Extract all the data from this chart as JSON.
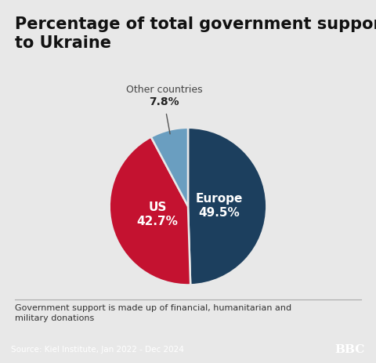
{
  "title": "Percentage of total government support\nto Ukraine",
  "slices": [
    49.5,
    42.7,
    7.8
  ],
  "labels": [
    "Europe",
    "US",
    "Other countries"
  ],
  "values_str": [
    "49.5%",
    "42.7%",
    "7.8%"
  ],
  "colors": [
    "#1c3f5e",
    "#c41230",
    "#6a9ec0"
  ],
  "background_color": "#e8e8e8",
  "footer_note": "Government support is made up of financial, humanitarian and\nmilitary donations",
  "source": "Source: Kiel Institute, Jan 2022 - Dec 2024",
  "bbc_text": "BBC",
  "title_fontsize": 15,
  "label_fontsize": 11
}
